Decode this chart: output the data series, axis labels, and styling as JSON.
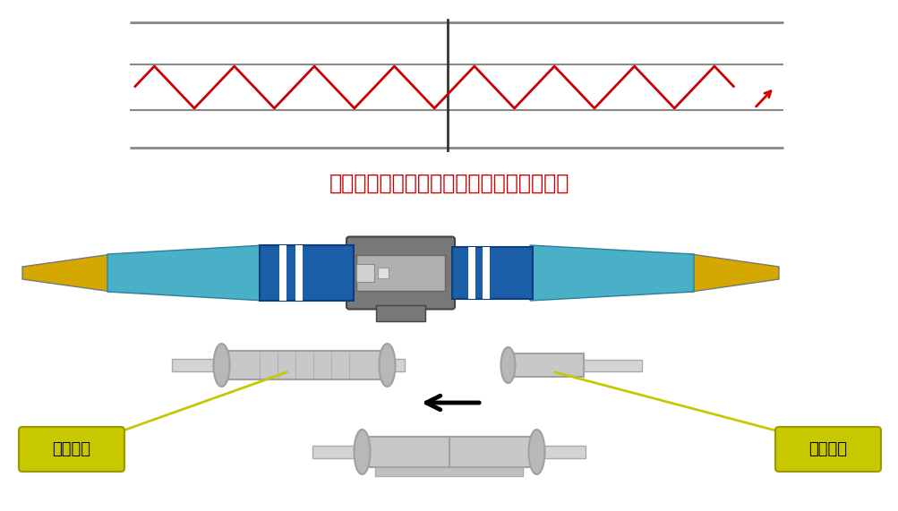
{
  "bg_color": "#ffffff",
  "title_text": "光波从一根光纤传播到另外一个光纤示意图",
  "title_color": "#cc0000",
  "title_fontsize": 17,
  "label_left": "陶瓷套筒",
  "label_right": "陶瓷插芯",
  "label_color": "#000000",
  "label_bg": "#c8c800",
  "wave_color": "#cc0000",
  "connector_blue": "#1a5fa8",
  "connector_blue_dark": "#0d3d7a",
  "connector_teal": "#4ab0c8",
  "connector_teal_dark": "#2a8098",
  "connector_yellow": "#d4a800",
  "connector_gray": "#787878",
  "connector_gray_light": "#b0b0b0",
  "ceramic_body": "#c8c8c8",
  "ceramic_dark": "#a0a0a0",
  "ceramic_flange": "#b8b8b8"
}
